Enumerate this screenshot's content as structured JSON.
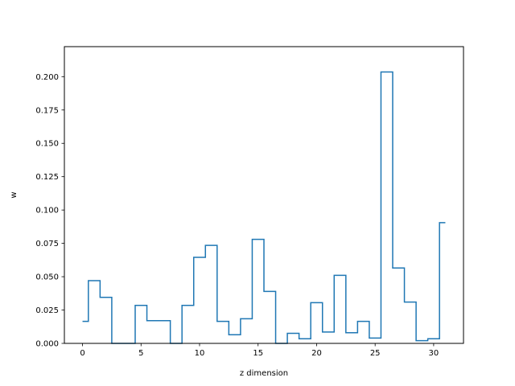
{
  "chart_data": {
    "type": "line",
    "step": "mid",
    "title": "",
    "xlabel": "z dimension",
    "ylabel": "w",
    "xlim": [
      -1.55,
      32.55
    ],
    "ylim": [
      0,
      0.2225
    ],
    "xticks": [
      0,
      5,
      10,
      15,
      20,
      25,
      30
    ],
    "yticks": [
      0.0,
      0.025,
      0.05,
      0.075,
      0.1,
      0.125,
      0.15,
      0.175,
      0.2
    ],
    "ytick_labels": [
      "0.000",
      "0.025",
      "0.050",
      "0.075",
      "0.100",
      "0.125",
      "0.150",
      "0.175",
      "0.200"
    ],
    "grid": false,
    "series": [
      {
        "color": "#1f77b4",
        "x": [
          0,
          1,
          2,
          3,
          4,
          5,
          6,
          7,
          8,
          9,
          10,
          11,
          12,
          13,
          14,
          15,
          16,
          17,
          18,
          19,
          20,
          21,
          22,
          23,
          24,
          25,
          26,
          27,
          28,
          29,
          30,
          31
        ],
        "y": [
          0.0165,
          0.047,
          0.0345,
          0.0,
          0.0,
          0.0285,
          0.017,
          0.017,
          0.0,
          0.0285,
          0.0645,
          0.0735,
          0.0165,
          0.0065,
          0.0185,
          0.078,
          0.039,
          0.0,
          0.0075,
          0.0035,
          0.0305,
          0.0085,
          0.051,
          0.008,
          0.0165,
          0.004,
          0.2035,
          0.0565,
          0.031,
          0.002,
          0.0035,
          0.0905
        ]
      }
    ]
  }
}
